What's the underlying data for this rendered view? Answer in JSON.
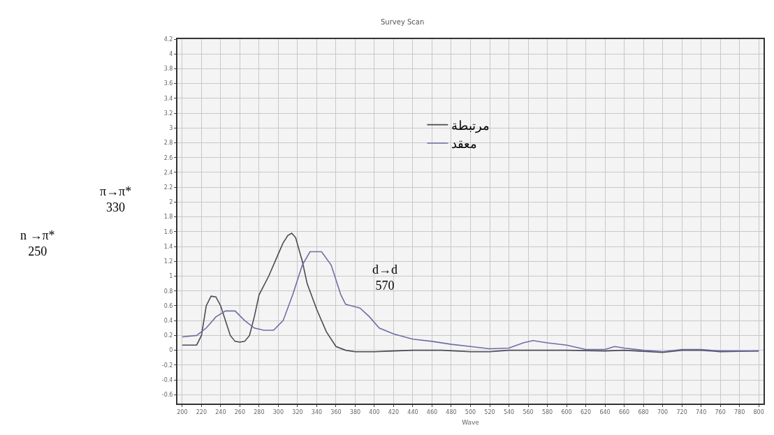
{
  "chart_data": {
    "type": "line",
    "title": "Survey Scan",
    "xlabel": "Wave",
    "annotations": [
      "π→π*\n330",
      "n →π*\n250",
      "d→d\n570"
    ],
    "xlim": [
      195,
      805
    ],
    "xticks": [
      200,
      220,
      240,
      260,
      280,
      300,
      320,
      340,
      360,
      380,
      400,
      420,
      440,
      460,
      480,
      500,
      520,
      540,
      560,
      580,
      600,
      620,
      640,
      660,
      680,
      700,
      720,
      740,
      760,
      780,
      800
    ],
    "ylim": [
      -0.72,
      4.2
    ],
    "yticks": [
      -0.6,
      -0.4,
      -0.2,
      0,
      0.2,
      0.4,
      0.6,
      0.8,
      1,
      1.2,
      1.4,
      1.6,
      1.8,
      2,
      2.2,
      2.4,
      2.6,
      2.8,
      3,
      3.2,
      3.4,
      3.6,
      3.8,
      4,
      4.2
    ],
    "grid": true,
    "legend": "top",
    "marker": "none",
    "line_style": "solid",
    "series": [
      {
        "name": "مرتبطة",
        "color": "#4a4a55",
        "x": [
          200,
          215,
          220,
          225,
          230,
          235,
          240,
          245,
          250,
          255,
          260,
          265,
          270,
          275,
          280,
          290,
          300,
          305,
          310,
          314,
          318,
          325,
          330,
          340,
          350,
          360,
          370,
          380,
          400,
          420,
          440,
          470,
          500,
          520,
          540,
          560,
          600,
          640,
          660,
          700,
          720,
          740,
          760,
          800
        ],
        "values": [
          0.07,
          0.07,
          0.2,
          0.6,
          0.73,
          0.72,
          0.6,
          0.4,
          0.2,
          0.12,
          0.11,
          0.12,
          0.2,
          0.45,
          0.75,
          1.0,
          1.3,
          1.45,
          1.55,
          1.58,
          1.52,
          1.2,
          0.9,
          0.55,
          0.25,
          0.05,
          0.0,
          -0.02,
          -0.02,
          -0.01,
          0.0,
          0.0,
          -0.02,
          -0.02,
          0.0,
          0.0,
          0.0,
          -0.01,
          0.0,
          -0.03,
          0.0,
          0.0,
          -0.02,
          -0.01
        ]
      },
      {
        "name": "معقد",
        "color": "#6d6da8",
        "x": [
          200,
          215,
          225,
          235,
          245,
          255,
          265,
          275,
          285,
          295,
          305,
          315,
          325,
          333,
          345,
          355,
          365,
          370,
          385,
          395,
          405,
          420,
          440,
          460,
          480,
          500,
          520,
          540,
          555,
          565,
          580,
          600,
          620,
          640,
          650,
          660,
          680,
          700,
          720,
          740,
          760,
          800
        ],
        "values": [
          0.18,
          0.2,
          0.3,
          0.45,
          0.53,
          0.53,
          0.4,
          0.3,
          0.27,
          0.27,
          0.4,
          0.75,
          1.15,
          1.33,
          1.33,
          1.15,
          0.75,
          0.62,
          0.57,
          0.45,
          0.3,
          0.22,
          0.15,
          0.12,
          0.08,
          0.05,
          0.02,
          0.03,
          0.1,
          0.13,
          0.1,
          0.07,
          0.01,
          0.01,
          0.05,
          0.03,
          0.0,
          -0.02,
          0.01,
          0.01,
          -0.01,
          -0.01
        ]
      }
    ]
  }
}
